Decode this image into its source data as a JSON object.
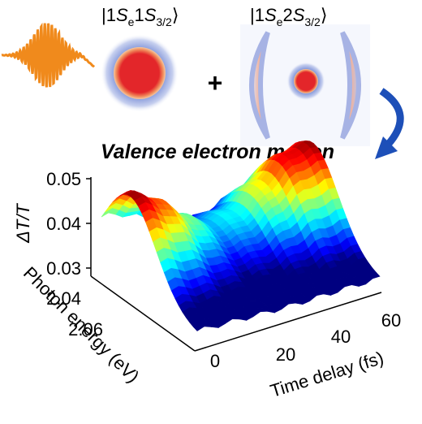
{
  "kets": [
    {
      "parts": [
        {
          "t": "|1",
          "style": "plain"
        },
        {
          "t": "S",
          "style": "italic"
        },
        {
          "t": "e",
          "style": "sub"
        },
        {
          "t": "1",
          "style": "plain"
        },
        {
          "t": "S",
          "style": "italic"
        },
        {
          "t": "3/2",
          "style": "sub"
        },
        {
          "t": "⟩",
          "style": "plain"
        }
      ]
    },
    {
      "parts": [
        {
          "t": "|1",
          "style": "plain"
        },
        {
          "t": "S",
          "style": "italic"
        },
        {
          "t": "e",
          "style": "sub"
        },
        {
          "t": "2",
          "style": "plain"
        },
        {
          "t": "S",
          "style": "italic"
        },
        {
          "t": "3/2",
          "style": "sub"
        },
        {
          "t": "⟩",
          "style": "plain"
        }
      ]
    }
  ],
  "plus": "+",
  "caption": "Valence electron motion",
  "plot": {
    "z_label": "ΔT/T",
    "z_ticks": [
      0.05,
      0.04,
      0.03
    ],
    "y_label": "Photon energy (eV)",
    "y_ticks": [
      2.04,
      2.06
    ],
    "x_label": "Time delay (fs)",
    "x_ticks": [
      0,
      20,
      40,
      60
    ]
  }
}
